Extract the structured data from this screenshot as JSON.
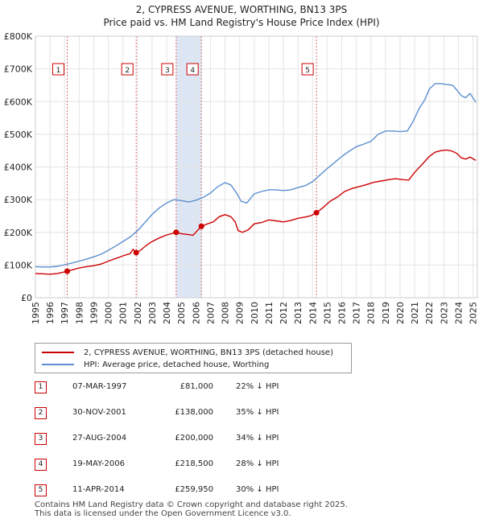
{
  "title": {
    "line1": "2, CYPRESS AVENUE, WORTHING, BN13 3PS",
    "line2": "Price paid vs. HM Land Registry's House Price Index (HPI)"
  },
  "colors": {
    "property": "#cc0000",
    "hpi": "#5b8fd1",
    "band": "#dde6f4",
    "marker_border": "#cc0000"
  },
  "chart_data": {
    "type": "line",
    "x_range": [
      1995.0,
      2025.3
    ],
    "ylim": [
      0,
      800000
    ],
    "y_ticks": [
      {
        "value": 0,
        "label": "£0"
      },
      {
        "value": 100000,
        "label": "£100K"
      },
      {
        "value": 200000,
        "label": "£200K"
      },
      {
        "value": 300000,
        "label": "£300K"
      },
      {
        "value": 400000,
        "label": "£400K"
      },
      {
        "value": 500000,
        "label": "£500K"
      },
      {
        "value": 600000,
        "label": "£600K"
      },
      {
        "value": 700000,
        "label": "£700K"
      },
      {
        "value": 800000,
        "label": "£800K"
      }
    ],
    "x_ticks": [
      "1995",
      "1996",
      "1997",
      "1998",
      "1999",
      "2000",
      "2001",
      "2002",
      "2003",
      "2004",
      "2005",
      "2006",
      "2007",
      "2008",
      "2009",
      "2010",
      "2011",
      "2012",
      "2013",
      "2014",
      "2015",
      "2016",
      "2017",
      "2018",
      "2019",
      "2020",
      "2021",
      "2022",
      "2023",
      "2024",
      "2025"
    ],
    "series": [
      {
        "name": "2, CYPRESS AVENUE, WORTHING, BN13 3PS (detached house)",
        "color": "#cc0000",
        "points": [
          [
            1995.0,
            74000
          ],
          [
            1995.5,
            73000
          ],
          [
            1996.0,
            72000
          ],
          [
            1996.5,
            74000
          ],
          [
            1997.0,
            79000
          ],
          [
            1997.18,
            81000
          ],
          [
            1997.6,
            86000
          ],
          [
            1998.0,
            91000
          ],
          [
            1998.5,
            95000
          ],
          [
            1999.0,
            98000
          ],
          [
            1999.5,
            103000
          ],
          [
            2000.0,
            112000
          ],
          [
            2000.5,
            120000
          ],
          [
            2001.0,
            128000
          ],
          [
            2001.5,
            135000
          ],
          [
            2001.7,
            148000
          ],
          [
            2001.91,
            138000
          ],
          [
            2002.2,
            145000
          ],
          [
            2002.6,
            160000
          ],
          [
            2003.0,
            172000
          ],
          [
            2003.5,
            183000
          ],
          [
            2004.0,
            192000
          ],
          [
            2004.5,
            198000
          ],
          [
            2004.65,
            200000
          ],
          [
            2005.0,
            196000
          ],
          [
            2005.5,
            193000
          ],
          [
            2005.8,
            191000
          ],
          [
            2006.1,
            205000
          ],
          [
            2006.38,
            218500
          ],
          [
            2006.8,
            226000
          ],
          [
            2007.2,
            232000
          ],
          [
            2007.6,
            248000
          ],
          [
            2008.0,
            254000
          ],
          [
            2008.4,
            248000
          ],
          [
            2008.7,
            232000
          ],
          [
            2008.9,
            205000
          ],
          [
            2009.2,
            200000
          ],
          [
            2009.6,
            208000
          ],
          [
            2010.0,
            226000
          ],
          [
            2010.5,
            230000
          ],
          [
            2011.0,
            238000
          ],
          [
            2011.5,
            235000
          ],
          [
            2012.0,
            232000
          ],
          [
            2012.5,
            236000
          ],
          [
            2013.0,
            243000
          ],
          [
            2013.5,
            247000
          ],
          [
            2013.9,
            251000
          ],
          [
            2014.27,
            259950
          ],
          [
            2014.7,
            275000
          ],
          [
            2015.2,
            295000
          ],
          [
            2015.7,
            308000
          ],
          [
            2016.2,
            325000
          ],
          [
            2016.7,
            334000
          ],
          [
            2017.2,
            340000
          ],
          [
            2017.7,
            346000
          ],
          [
            2018.2,
            353000
          ],
          [
            2018.7,
            357000
          ],
          [
            2019.2,
            361000
          ],
          [
            2019.7,
            364000
          ],
          [
            2020.2,
            361000
          ],
          [
            2020.6,
            360000
          ],
          [
            2020.9,
            378000
          ],
          [
            2021.2,
            393000
          ],
          [
            2021.6,
            412000
          ],
          [
            2022.0,
            432000
          ],
          [
            2022.4,
            445000
          ],
          [
            2022.8,
            450000
          ],
          [
            2023.2,
            452000
          ],
          [
            2023.6,
            448000
          ],
          [
            2023.9,
            441000
          ],
          [
            2024.2,
            428000
          ],
          [
            2024.5,
            424000
          ],
          [
            2024.8,
            430000
          ],
          [
            2025.2,
            420000
          ]
        ]
      },
      {
        "name": "HPI: Average price, detached house, Worthing",
        "color": "#5b8fd1",
        "points": [
          [
            1995.0,
            95000
          ],
          [
            1995.5,
            94000
          ],
          [
            1996.0,
            94000
          ],
          [
            1996.5,
            96000
          ],
          [
            1997.0,
            101000
          ],
          [
            1997.5,
            106000
          ],
          [
            1998.0,
            112000
          ],
          [
            1998.5,
            118000
          ],
          [
            1999.0,
            125000
          ],
          [
            1999.5,
            133000
          ],
          [
            2000.0,
            145000
          ],
          [
            2000.5,
            158000
          ],
          [
            2001.0,
            172000
          ],
          [
            2001.5,
            186000
          ],
          [
            2002.0,
            205000
          ],
          [
            2002.5,
            230000
          ],
          [
            2003.0,
            255000
          ],
          [
            2003.5,
            275000
          ],
          [
            2004.0,
            290000
          ],
          [
            2004.5,
            300000
          ],
          [
            2005.0,
            297000
          ],
          [
            2005.5,
            293000
          ],
          [
            2006.0,
            298000
          ],
          [
            2006.5,
            307000
          ],
          [
            2007.0,
            320000
          ],
          [
            2007.5,
            340000
          ],
          [
            2008.0,
            352000
          ],
          [
            2008.4,
            345000
          ],
          [
            2008.8,
            320000
          ],
          [
            2009.1,
            295000
          ],
          [
            2009.5,
            290000
          ],
          [
            2010.0,
            318000
          ],
          [
            2010.5,
            325000
          ],
          [
            2011.0,
            330000
          ],
          [
            2011.5,
            330000
          ],
          [
            2012.0,
            328000
          ],
          [
            2012.5,
            330000
          ],
          [
            2013.0,
            337000
          ],
          [
            2013.5,
            343000
          ],
          [
            2014.0,
            355000
          ],
          [
            2014.5,
            375000
          ],
          [
            2015.0,
            395000
          ],
          [
            2015.5,
            413000
          ],
          [
            2016.0,
            432000
          ],
          [
            2016.5,
            448000
          ],
          [
            2017.0,
            462000
          ],
          [
            2017.5,
            470000
          ],
          [
            2018.0,
            478000
          ],
          [
            2018.5,
            500000
          ],
          [
            2019.0,
            510000
          ],
          [
            2019.5,
            510000
          ],
          [
            2020.0,
            508000
          ],
          [
            2020.5,
            510000
          ],
          [
            2020.9,
            540000
          ],
          [
            2021.3,
            578000
          ],
          [
            2021.7,
            606000
          ],
          [
            2022.0,
            638000
          ],
          [
            2022.4,
            655000
          ],
          [
            2022.8,
            655000
          ],
          [
            2023.2,
            652000
          ],
          [
            2023.6,
            650000
          ],
          [
            2023.9,
            635000
          ],
          [
            2024.2,
            618000
          ],
          [
            2024.5,
            612000
          ],
          [
            2024.8,
            625000
          ],
          [
            2025.2,
            598000
          ]
        ]
      }
    ],
    "sales": [
      {
        "label": "1",
        "x": 1997.18,
        "value": 81000
      },
      {
        "label": "2",
        "x": 2001.91,
        "value": 138000
      },
      {
        "label": "3",
        "x": 2004.65,
        "value": 200000
      },
      {
        "label": "4",
        "x": 2006.38,
        "value": 218500
      },
      {
        "label": "5",
        "x": 2014.27,
        "value": 259950
      }
    ],
    "shaded_ranges": [
      [
        2004.65,
        2006.38
      ]
    ]
  },
  "legend": {
    "property": "2, CYPRESS AVENUE, WORTHING, BN13 3PS (detached house)",
    "hpi": "HPI: Average price, detached house, Worthing"
  },
  "transactions": [
    {
      "num": "1",
      "date": "07-MAR-1997",
      "price": "£81,000",
      "hpi": "22% ↓ HPI"
    },
    {
      "num": "2",
      "date": "30-NOV-2001",
      "price": "£138,000",
      "hpi": "35% ↓ HPI"
    },
    {
      "num": "3",
      "date": "27-AUG-2004",
      "price": "£200,000",
      "hpi": "34% ↓ HPI"
    },
    {
      "num": "4",
      "date": "19-MAY-2006",
      "price": "£218,500",
      "hpi": "28% ↓ HPI"
    },
    {
      "num": "5",
      "date": "11-APR-2014",
      "price": "£259,950",
      "hpi": "30% ↓ HPI"
    }
  ],
  "footer": {
    "line1": "Contains HM Land Registry data © Crown copyright and database right 2025.",
    "line2": "This data is licensed under the Open Government Licence v3.0."
  }
}
